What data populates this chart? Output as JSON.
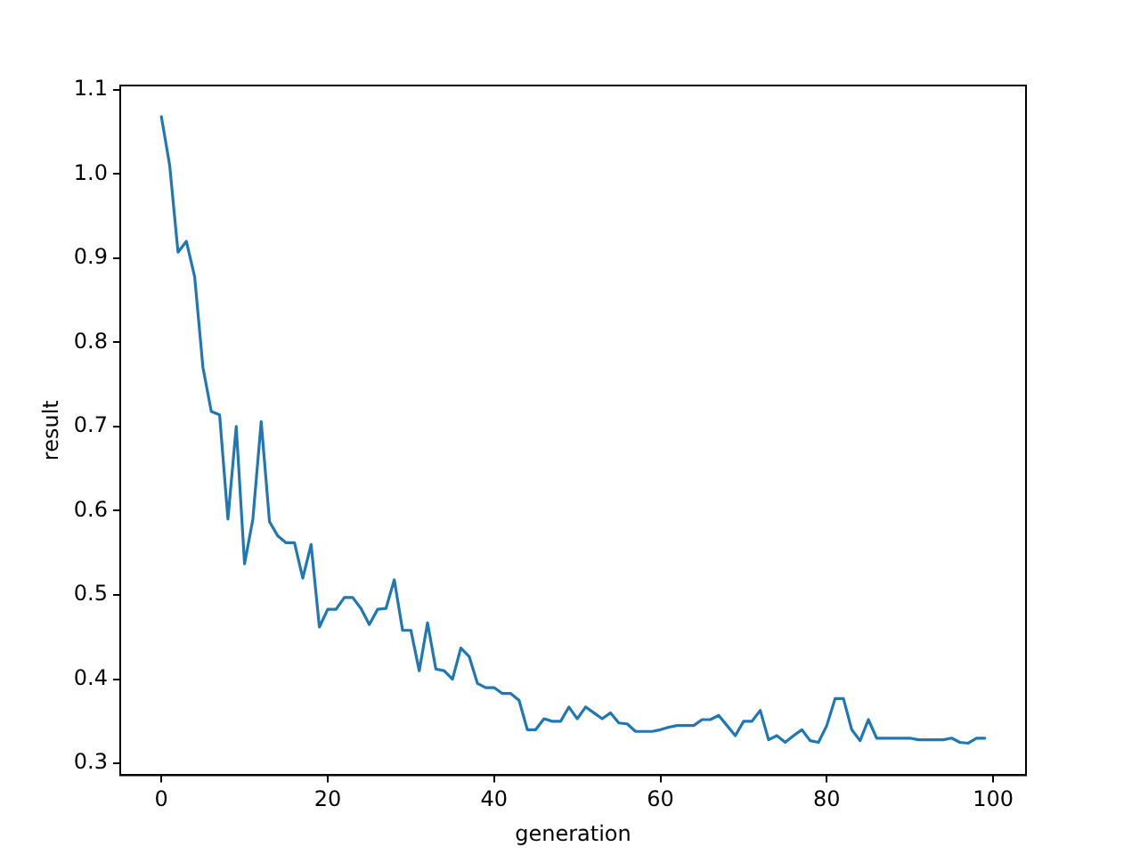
{
  "chart_data": {
    "type": "line",
    "xlabel": "generation",
    "ylabel": "result",
    "x": [
      0,
      1,
      2,
      3,
      4,
      5,
      6,
      7,
      8,
      9,
      10,
      11,
      12,
      13,
      14,
      15,
      16,
      17,
      18,
      19,
      20,
      21,
      22,
      23,
      24,
      25,
      26,
      27,
      28,
      29,
      30,
      31,
      32,
      33,
      34,
      35,
      36,
      37,
      38,
      39,
      40,
      41,
      42,
      43,
      44,
      45,
      46,
      47,
      48,
      49,
      50,
      51,
      52,
      53,
      54,
      55,
      56,
      57,
      58,
      59,
      60,
      61,
      62,
      63,
      64,
      65,
      66,
      67,
      68,
      69,
      70,
      71,
      72,
      73,
      74,
      75,
      76,
      77,
      78,
      79,
      80,
      81,
      82,
      83,
      84,
      85,
      86,
      87,
      88,
      89,
      90,
      91,
      92,
      93,
      94,
      95,
      96,
      97,
      98,
      99
    ],
    "series": [
      {
        "color": "#1f77b4",
        "values": [
          1.068,
          1.01,
          0.907,
          0.92,
          0.878,
          0.77,
          0.718,
          0.714,
          0.59,
          0.7,
          0.537,
          0.59,
          0.706,
          0.587,
          0.57,
          0.562,
          0.562,
          0.52,
          0.56,
          0.462,
          0.483,
          0.483,
          0.497,
          0.497,
          0.484,
          0.465,
          0.483,
          0.484,
          0.518,
          0.458,
          0.458,
          0.41,
          0.467,
          0.412,
          0.41,
          0.4,
          0.437,
          0.427,
          0.395,
          0.39,
          0.39,
          0.383,
          0.383,
          0.375,
          0.34,
          0.34,
          0.353,
          0.35,
          0.35,
          0.367,
          0.353,
          0.367,
          0.36,
          0.353,
          0.36,
          0.348,
          0.347,
          0.338,
          0.338,
          0.338,
          0.34,
          0.343,
          0.345,
          0.345,
          0.345,
          0.352,
          0.352,
          0.357,
          0.345,
          0.333,
          0.35,
          0.35,
          0.363,
          0.328,
          0.333,
          0.325,
          0.333,
          0.34,
          0.327,
          0.325,
          0.345,
          0.377,
          0.377,
          0.34,
          0.327,
          0.352,
          0.33,
          0.33,
          0.33,
          0.33,
          0.33,
          0.328,
          0.328,
          0.328,
          0.328,
          0.33,
          0.325,
          0.324,
          0.33,
          0.33
        ]
      }
    ],
    "xlim": [
      -4.95,
      103.95
    ],
    "xticks": [
      0,
      20,
      40,
      60,
      80,
      100
    ],
    "ylim": [
      0.286,
      1.105
    ],
    "yticks": [
      {
        "value": 0.3,
        "label": "0.3"
      },
      {
        "value": 0.4,
        "label": "0.4"
      },
      {
        "value": 0.5,
        "label": "0.5"
      },
      {
        "value": 0.6,
        "label": "0.6"
      },
      {
        "value": 0.7,
        "label": "0.7"
      },
      {
        "value": 0.8,
        "label": "0.8"
      },
      {
        "value": 0.9,
        "label": "0.9"
      },
      {
        "value": 1,
        "label": "1.0"
      },
      {
        "value": 1.1,
        "label": "1.1"
      }
    ],
    "grid": false,
    "legend": false,
    "marker": "none",
    "line_style": "solid"
  }
}
